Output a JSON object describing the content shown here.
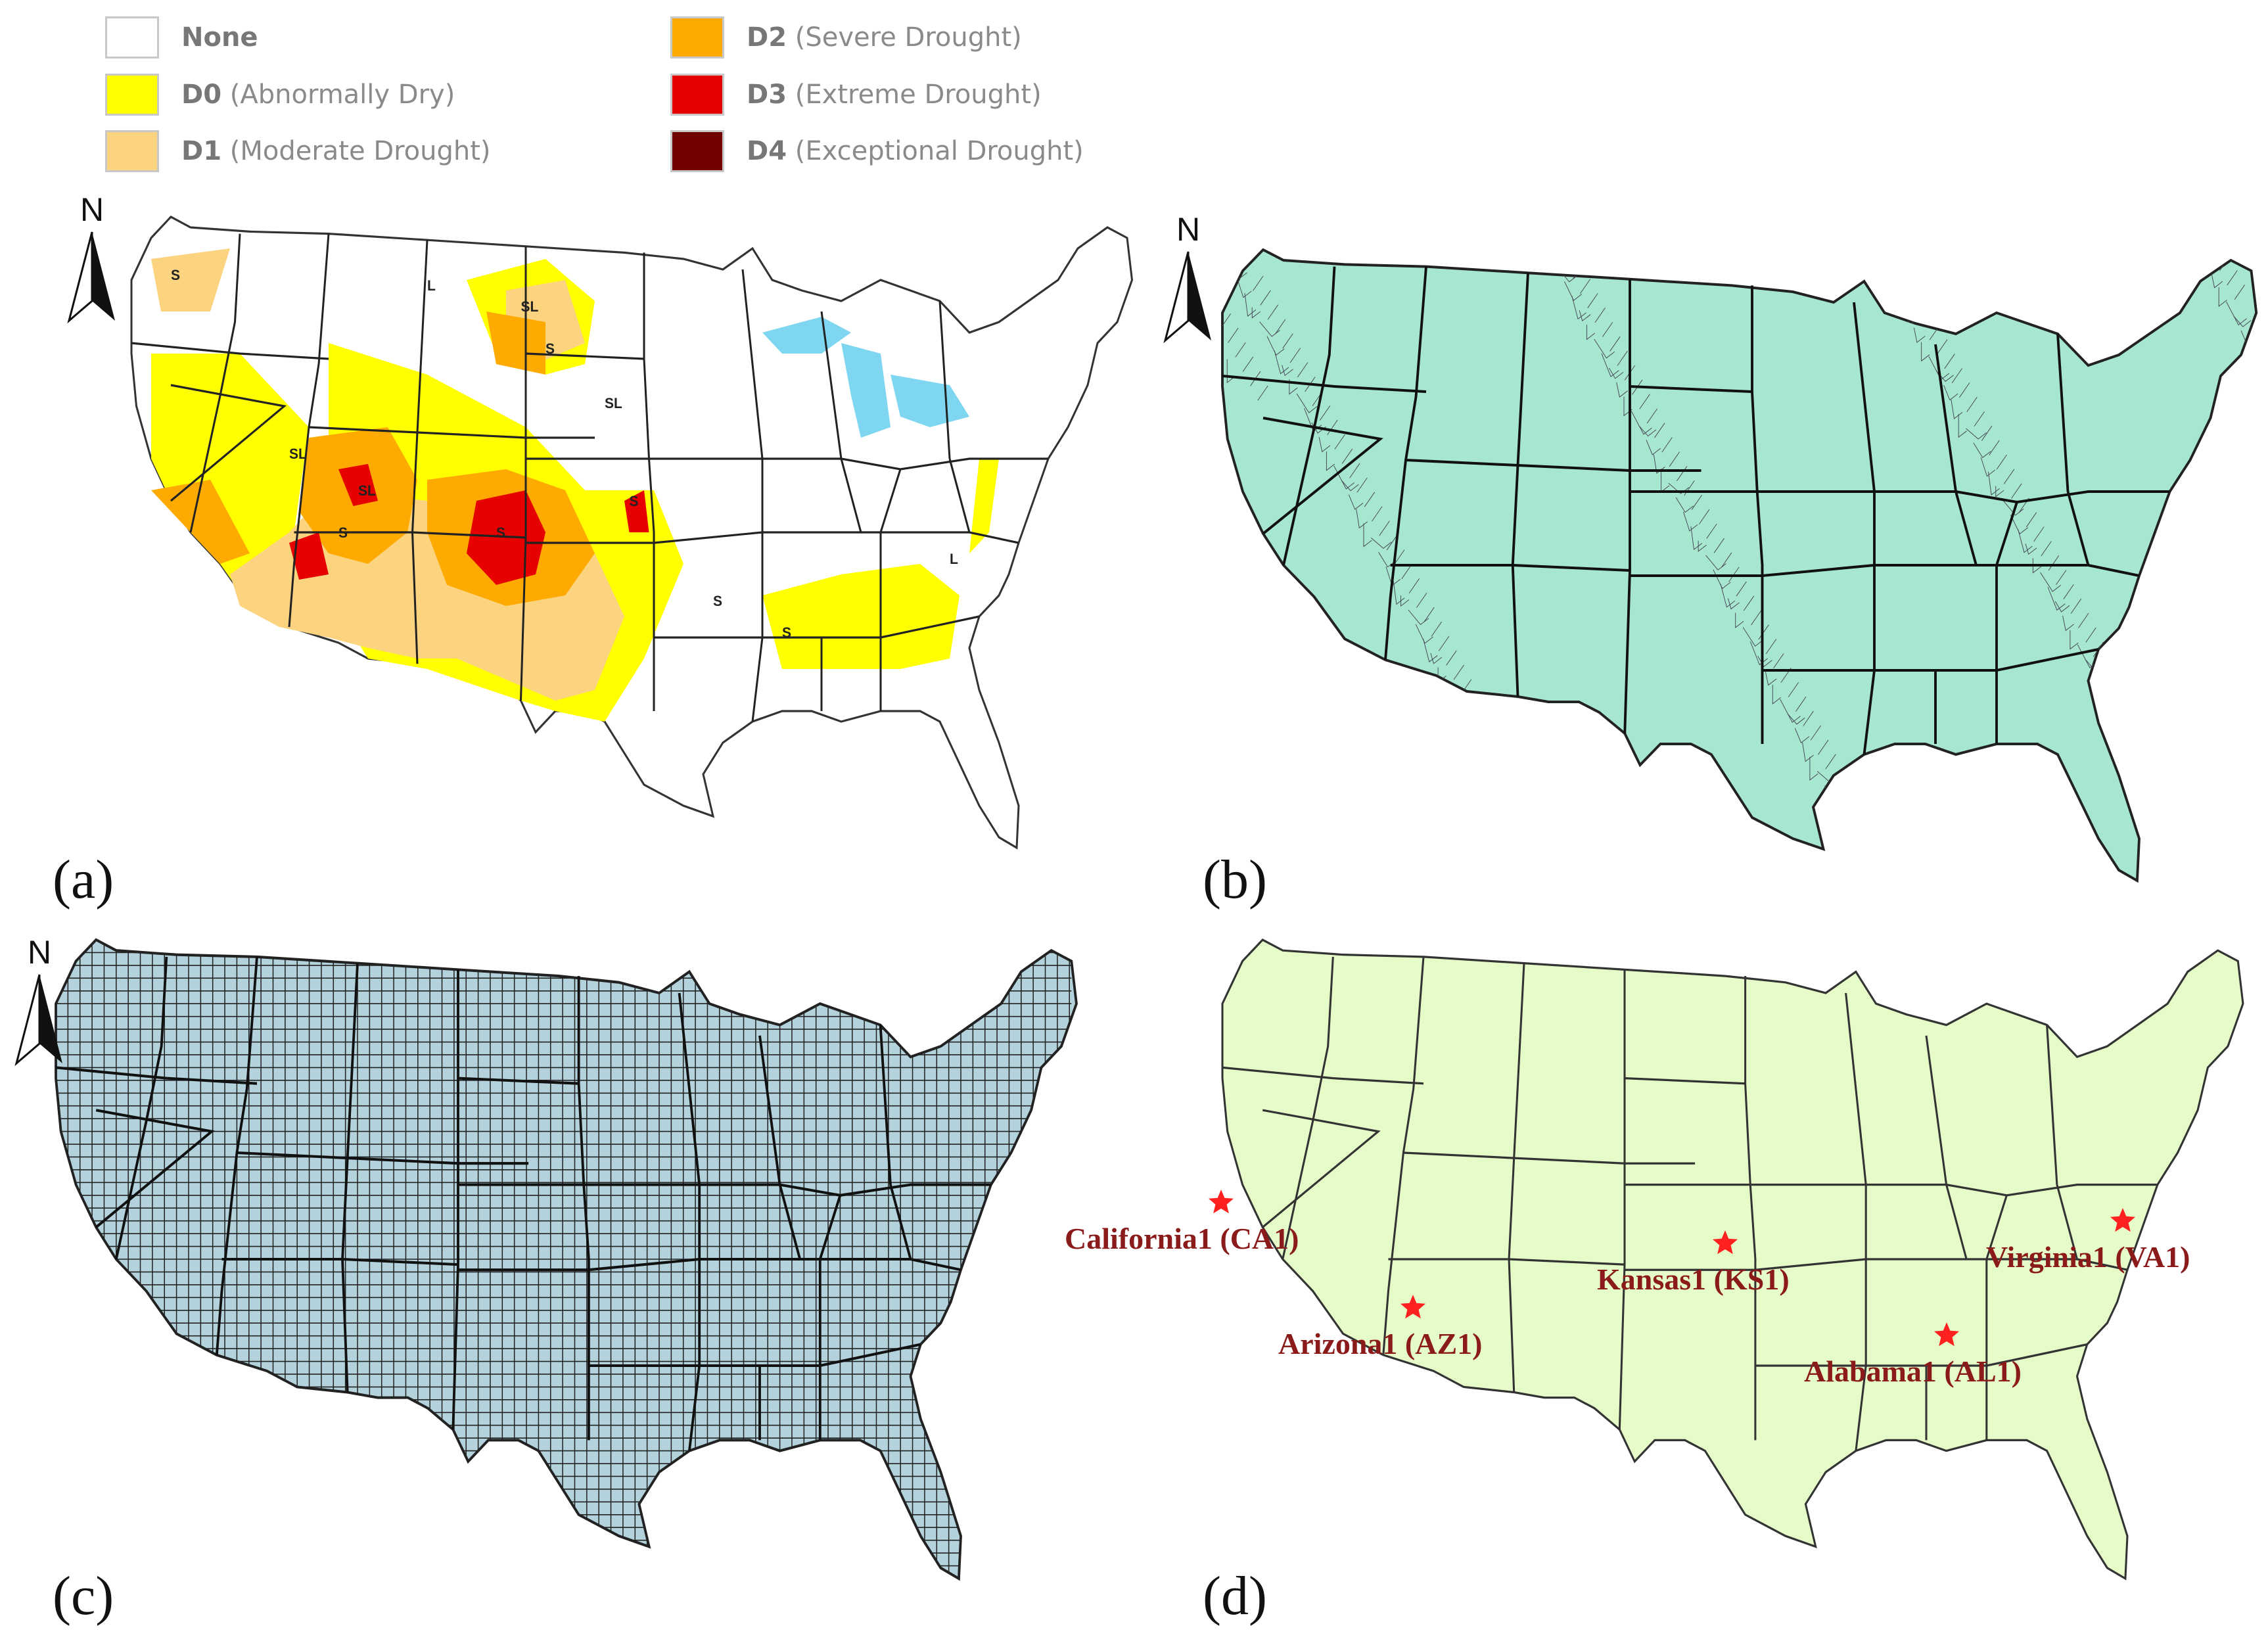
{
  "legend": {
    "items": [
      {
        "code": "None",
        "desc": "",
        "color": "#ffffff"
      },
      {
        "code": "D0",
        "desc": " (Abnormally Dry)",
        "color": "#ffff00"
      },
      {
        "code": "D1",
        "desc": " (Moderate Drought)",
        "color": "#fcd37f"
      },
      {
        "code": "D2",
        "desc": " (Severe Drought)",
        "color": "#ffaa00"
      },
      {
        "code": "D3",
        "desc": " (Extreme Drought)",
        "color": "#e60000"
      },
      {
        "code": "D4",
        "desc": " (Exceptional Drought)",
        "color": "#730000"
      }
    ]
  },
  "north_arrow": "N",
  "panels": {
    "a": {
      "label": "(a)",
      "fill": "#ffffff"
    },
    "b": {
      "label": "(b)",
      "fill": "#a7e6cf"
    },
    "c": {
      "label": "(c)",
      "fill": "#b3d2dc"
    },
    "d": {
      "label": "(d)",
      "fill": "#e6fcc8"
    }
  },
  "map_annotations": [
    "S",
    "L",
    "SL",
    "SL",
    "S",
    "SL",
    "SL",
    "S",
    "S",
    "S",
    "S",
    "S",
    "L"
  ],
  "sites": [
    {
      "label": "California1 (CA1)"
    },
    {
      "label": "Arizona1 (AZ1)"
    },
    {
      "label": "Kansas1 (KS1)"
    },
    {
      "label": "Alabama1 (AL1)"
    },
    {
      "label": "Virginia1 (VA1)"
    }
  ],
  "colors": {
    "site_marker": "#ff2020",
    "site_label": "#8b1a1a",
    "state_border": "#222222",
    "water": "#7fd6f0"
  }
}
